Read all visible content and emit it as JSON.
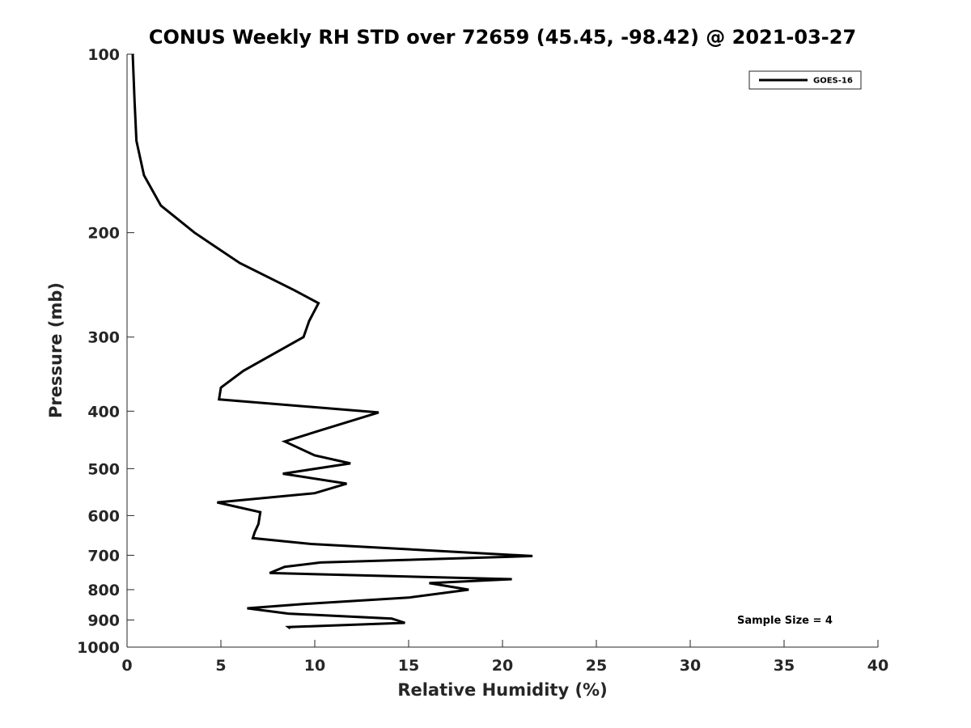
{
  "chart_data": {
    "type": "line",
    "title": "CONUS Weekly RH STD over 72659 (45.45, -98.42) @ 2021-03-27",
    "xlabel": "Relative Humidity (%)",
    "ylabel": "Pressure (mb)",
    "xlim": [
      0,
      40
    ],
    "ylim": [
      100,
      1000
    ],
    "y_scale": "log",
    "y_reversed": true,
    "grid": false,
    "x_ticks": [
      0,
      5,
      10,
      15,
      20,
      25,
      30,
      35,
      40
    ],
    "y_ticks": [
      100,
      200,
      300,
      400,
      500,
      600,
      700,
      800,
      900,
      1000
    ],
    "legend": {
      "placement": "top-right",
      "entries": [
        "GOES-16"
      ]
    },
    "annotation": "Sample Size = 4",
    "series": [
      {
        "name": "GOES-16",
        "color": "#000000",
        "points": [
          [
            0.3,
            100
          ],
          [
            0.4,
            120
          ],
          [
            0.5,
            140
          ],
          [
            0.9,
            160
          ],
          [
            1.8,
            180
          ],
          [
            3.6,
            200
          ],
          [
            6.0,
            225
          ],
          [
            8.9,
            250
          ],
          [
            10.2,
            263
          ],
          [
            9.7,
            282
          ],
          [
            9.4,
            300
          ],
          [
            6.2,
            342
          ],
          [
            5.0,
            365
          ],
          [
            4.9,
            382
          ],
          [
            13.4,
            402
          ],
          [
            10.4,
            430
          ],
          [
            8.4,
            450
          ],
          [
            10.0,
            475
          ],
          [
            11.9,
            490
          ],
          [
            8.3,
            510
          ],
          [
            11.7,
            530
          ],
          [
            10.0,
            550
          ],
          [
            4.8,
            570
          ],
          [
            7.1,
            592
          ],
          [
            7.0,
            620
          ],
          [
            6.8,
            640
          ],
          [
            6.7,
            655
          ],
          [
            9.8,
            670
          ],
          [
            21.6,
            702
          ],
          [
            10.3,
            720
          ],
          [
            8.4,
            732
          ],
          [
            7.6,
            750
          ],
          [
            20.5,
            768
          ],
          [
            16.1,
            780
          ],
          [
            18.2,
            800
          ],
          [
            15.0,
            825
          ],
          [
            9.6,
            845
          ],
          [
            6.4,
            860
          ],
          [
            8.6,
            878
          ],
          [
            14.1,
            895
          ],
          [
            14.8,
            910
          ],
          [
            8.6,
            925
          ],
          [
            8.7,
            930
          ]
        ]
      }
    ]
  }
}
